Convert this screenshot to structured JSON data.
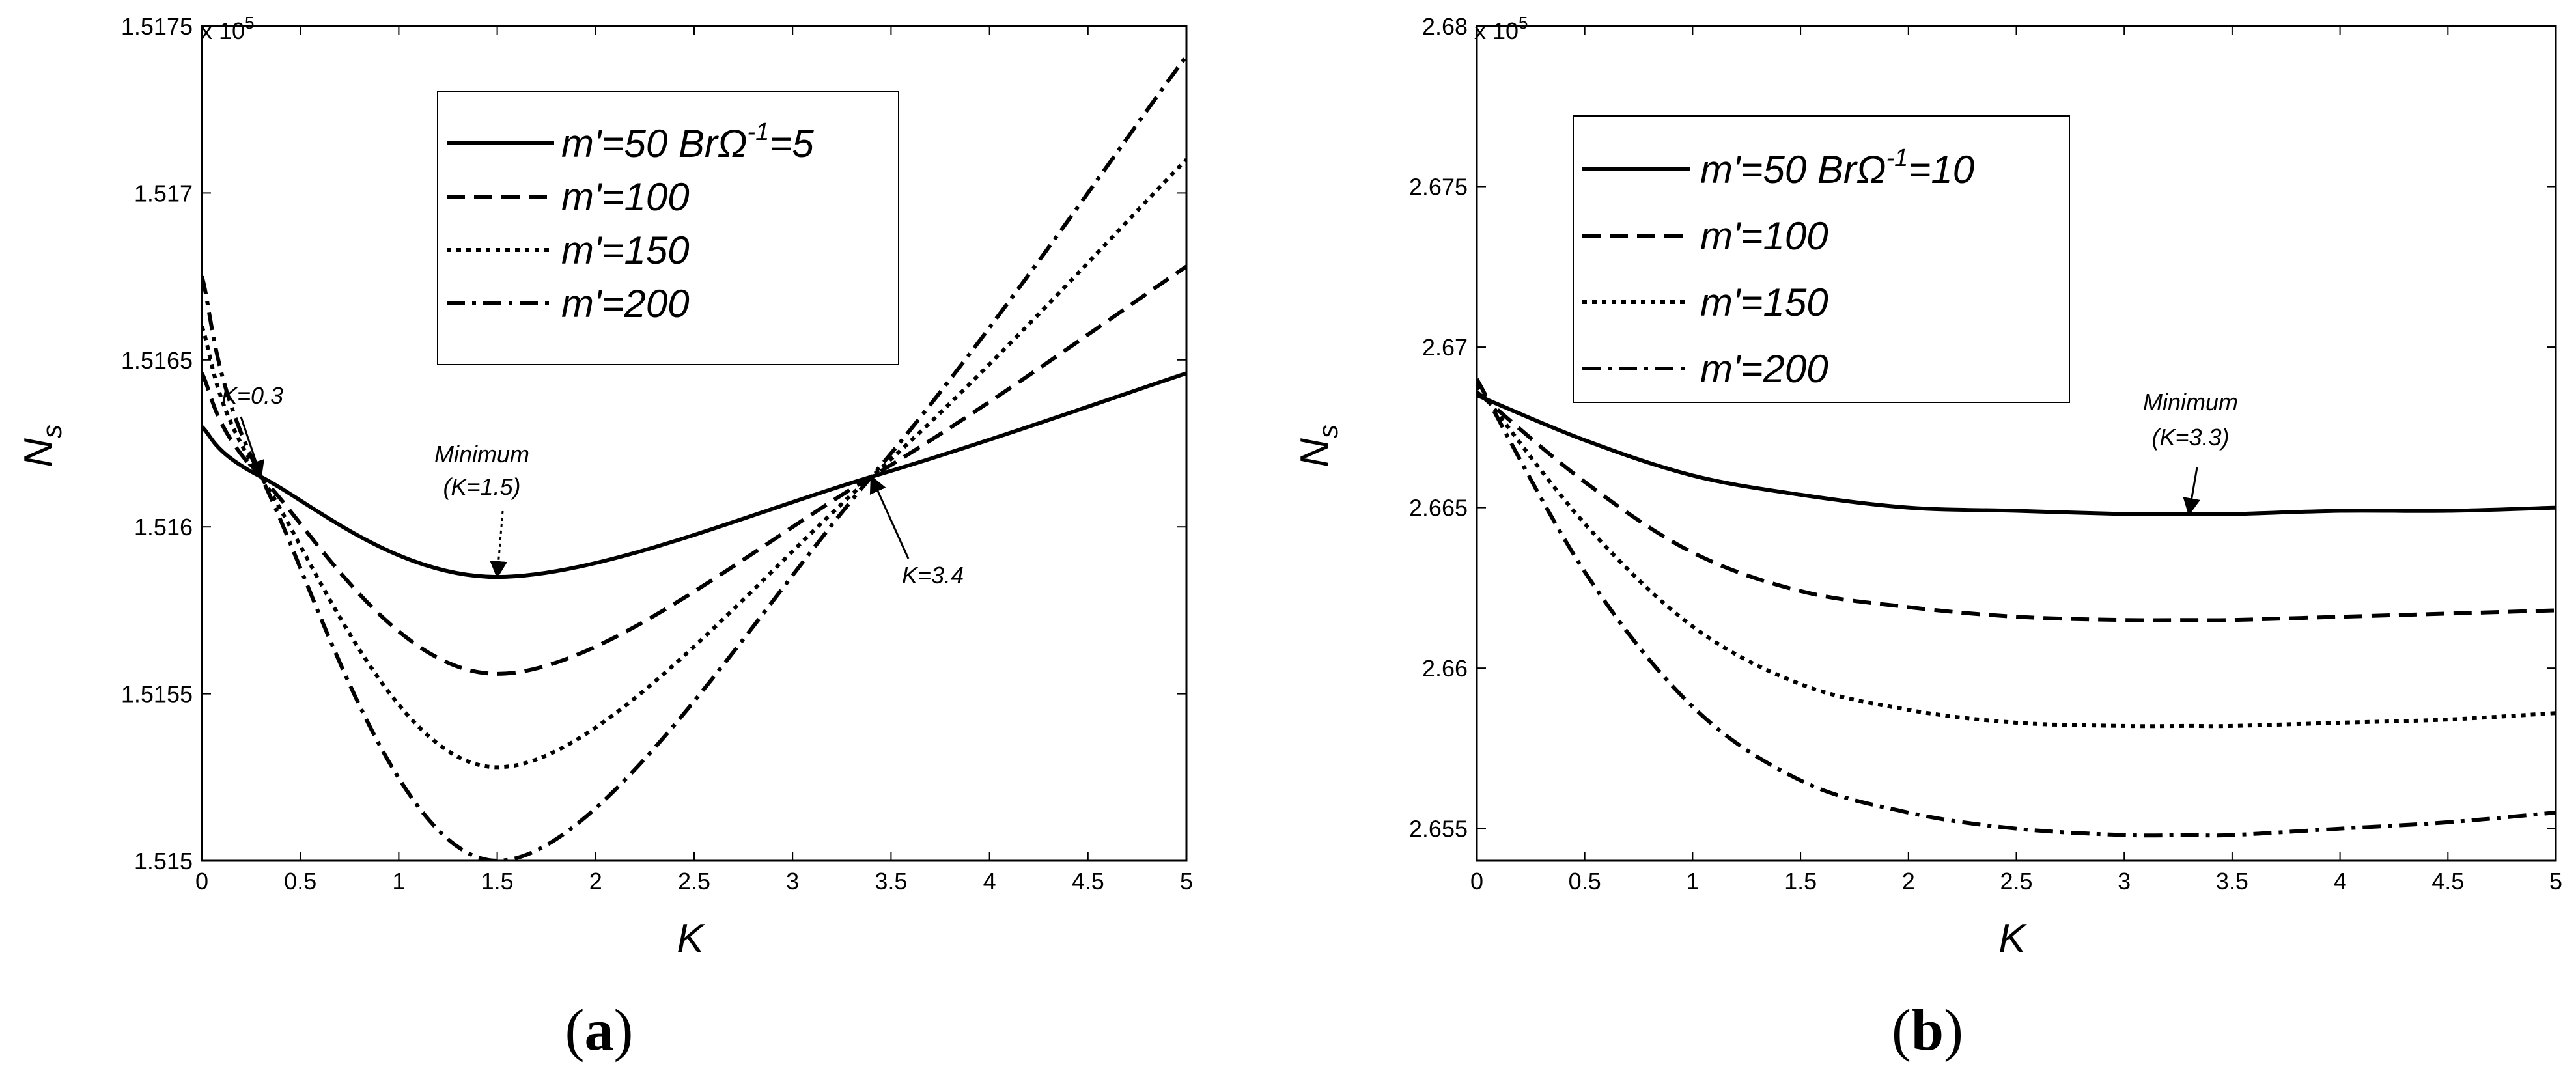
{
  "chart_data": [
    {
      "type": "line",
      "panel_label": "a",
      "xlabel": "K",
      "ylabel": "N",
      "ylabel_sub": "s",
      "xlim": [
        0,
        5
      ],
      "ylim": [
        1.515,
        1.5175
      ],
      "y_multiplier": "x 10",
      "y_multiplier_exp": "5",
      "x_ticks": [
        "0",
        "0.5",
        "1",
        "1.5",
        "2",
        "2.5",
        "3",
        "3.5",
        "4",
        "4.5",
        "5"
      ],
      "y_ticks": [
        "1.515",
        "1.5155",
        "1.516",
        "1.5165",
        "1.517",
        "1.5175"
      ],
      "x": [
        0,
        0.3,
        1.5,
        3.4,
        5
      ],
      "series": [
        {
          "name": "m'=50 BrΩ",
          "name_sup": "-1",
          "name_tail": "=5",
          "dash": "solid",
          "values": [
            1.5163,
            1.51615,
            1.51585,
            1.51615,
            1.51646
          ]
        },
        {
          "name": "m'=100",
          "dash": "dashed",
          "values": [
            1.51646,
            1.51615,
            1.51556,
            1.51615,
            1.51678
          ]
        },
        {
          "name": "m'=150",
          "dash": "dotted",
          "values": [
            1.5166,
            1.51615,
            1.51528,
            1.51615,
            1.5171
          ]
        },
        {
          "name": "m'=200",
          "dash": "dashdot",
          "values": [
            1.51675,
            1.51615,
            1.515,
            1.51615,
            1.51741
          ]
        }
      ],
      "annotations": [
        {
          "text": "K=0.3",
          "x": 0.3,
          "y": 1.51615
        },
        {
          "text": "Minimum",
          "text2": "(K=1.5)",
          "x": 1.5,
          "y": 1.51585
        },
        {
          "text": "K=3.4",
          "x": 3.4,
          "y": 1.51615
        }
      ],
      "legend_position": "top-center",
      "grid": false
    },
    {
      "type": "line",
      "panel_label": "b",
      "xlabel": "K",
      "ylabel": "N",
      "ylabel_sub": "s",
      "xlim": [
        0,
        5
      ],
      "ylim": [
        2.654,
        2.68
      ],
      "y_multiplier": "x 10",
      "y_multiplier_exp": "5",
      "x_ticks": [
        "0",
        "0.5",
        "1",
        "1.5",
        "2",
        "2.5",
        "3",
        "3.5",
        "4",
        "4.5",
        "5"
      ],
      "y_ticks": [
        "2.655",
        "2.66",
        "2.665",
        "2.67",
        "2.675",
        "2.68"
      ],
      "x": [
        0,
        0.5,
        1,
        1.5,
        2,
        2.5,
        3,
        3.3,
        3.5,
        4,
        4.5,
        5
      ],
      "series": [
        {
          "name": "m'=50 BrΩ",
          "name_sup": "-1",
          "name_tail": "=10",
          "dash": "solid",
          "values": [
            2.6685,
            2.6671,
            2.666,
            2.6654,
            2.665,
            2.6649,
            2.6648,
            2.6648,
            2.6648,
            2.6649,
            2.6649,
            2.665
          ]
        },
        {
          "name": "m'=100",
          "dash": "dashed",
          "values": [
            2.6686,
            2.6658,
            2.6636,
            2.6624,
            2.6619,
            2.6616,
            2.6615,
            2.6615,
            2.6615,
            2.6616,
            2.6617,
            2.6618
          ]
        },
        {
          "name": "m'=150",
          "dash": "dotted",
          "values": [
            2.6688,
            2.6645,
            2.6613,
            2.6595,
            2.6587,
            2.6583,
            2.6582,
            2.6582,
            2.6582,
            2.6583,
            2.6584,
            2.6586
          ]
        },
        {
          "name": "m'=200",
          "dash": "dashdot",
          "values": [
            2.669,
            2.663,
            2.6588,
            2.6565,
            2.6555,
            2.655,
            2.6548,
            2.6548,
            2.6548,
            2.655,
            2.6552,
            2.6555
          ]
        }
      ],
      "annotations": [
        {
          "text": "Minimum",
          "text2": "(K=3.3)",
          "x": 3.3,
          "y": 2.6648
        }
      ],
      "legend_position": "top-left",
      "grid": false
    }
  ]
}
